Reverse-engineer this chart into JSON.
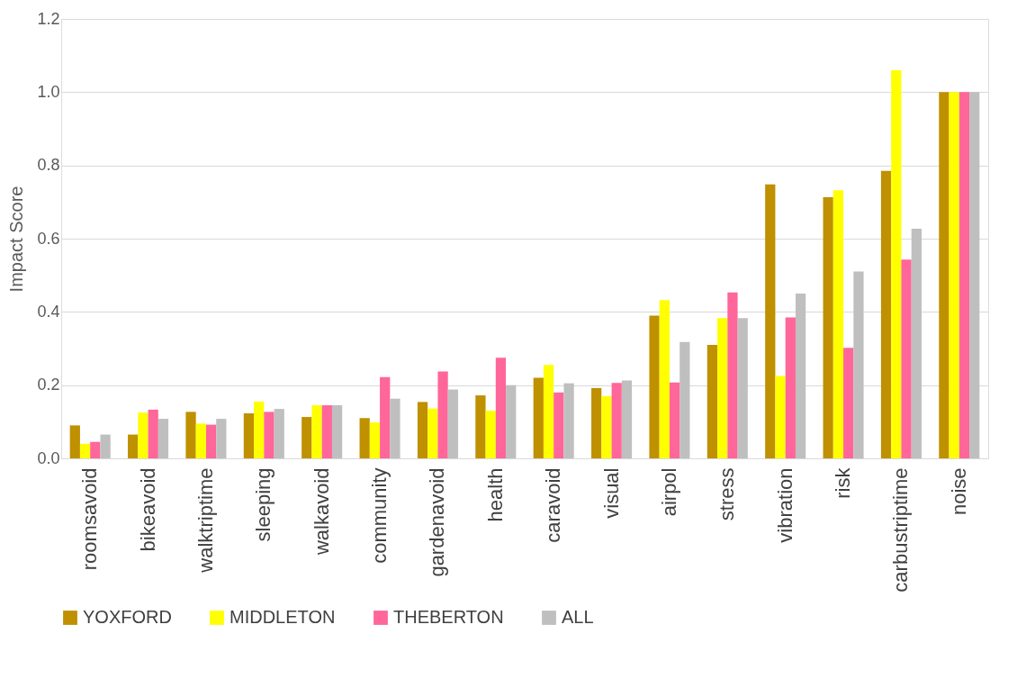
{
  "chart_data": {
    "type": "bar",
    "ylabel": "Impact Score",
    "categories": [
      "roomsavoid",
      "bikeavoid",
      "walktriptime",
      "sleeping",
      "walkavoid",
      "community",
      "gardenavoid",
      "health",
      "caravoid",
      "visual",
      "airpol",
      "stress",
      "vibration",
      "risk",
      "carbustriptime",
      "noise"
    ],
    "series": [
      {
        "name": "YOXFORD",
        "color": "#bf9000",
        "values": [
          0.09,
          0.065,
          0.127,
          0.123,
          0.113,
          0.11,
          0.154,
          0.172,
          0.22,
          0.192,
          0.39,
          0.31,
          0.748,
          0.713,
          0.785,
          1.0
        ]
      },
      {
        "name": "MIDDLETON",
        "color": "#ffff00",
        "values": [
          0.04,
          0.125,
          0.095,
          0.155,
          0.145,
          0.098,
          0.136,
          0.13,
          0.255,
          0.17,
          0.432,
          0.383,
          0.225,
          0.732,
          1.06,
          1.0
        ]
      },
      {
        "name": "THEBERTON",
        "color": "#ff6699",
        "values": [
          0.045,
          0.133,
          0.092,
          0.127,
          0.145,
          0.222,
          0.237,
          0.275,
          0.18,
          0.206,
          0.207,
          0.453,
          0.385,
          0.302,
          0.543,
          1.0
        ]
      },
      {
        "name": "ALL",
        "color": "#bfbfbf",
        "values": [
          0.065,
          0.108,
          0.108,
          0.135,
          0.145,
          0.163,
          0.188,
          0.2,
          0.205,
          0.213,
          0.318,
          0.383,
          0.45,
          0.51,
          0.627,
          1.0
        ]
      }
    ],
    "ylim": [
      0,
      1.2
    ],
    "yticks": [
      {
        "value": 0,
        "label": "0.0"
      },
      {
        "value": 0.2,
        "label": "0.2"
      },
      {
        "value": 0.4,
        "label": "0.4"
      },
      {
        "value": 0.6,
        "label": "0.6"
      },
      {
        "value": 0.8,
        "label": "0.8"
      },
      {
        "value": 1.0,
        "label": "1.0"
      },
      {
        "value": 1.2,
        "label": "1.2"
      }
    ],
    "grid": "y",
    "legend": "bottom"
  }
}
